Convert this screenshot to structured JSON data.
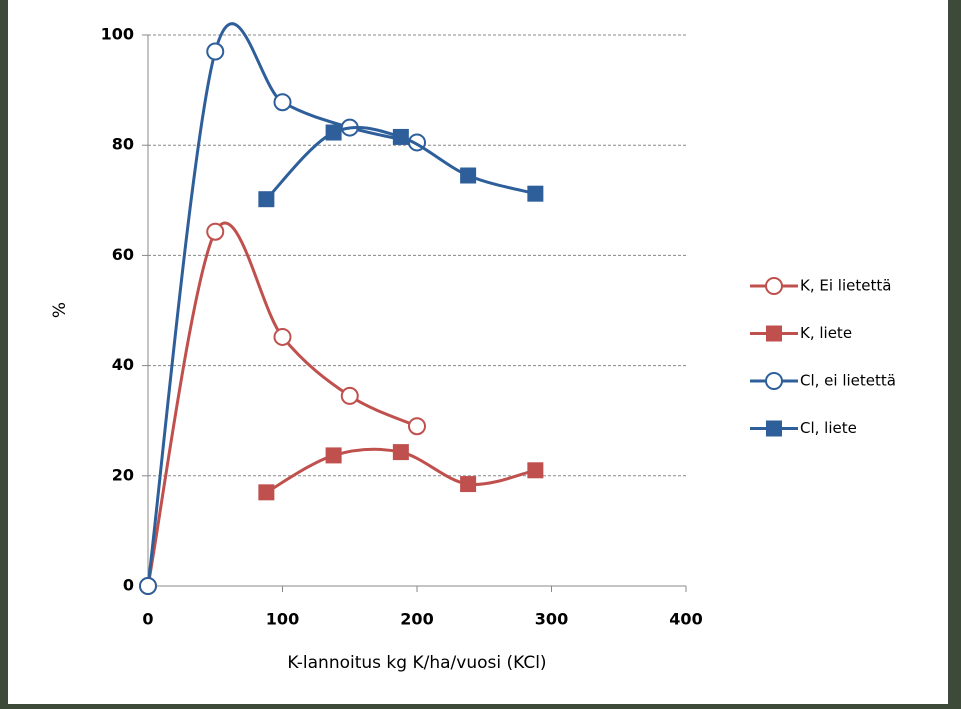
{
  "chart_data": {
    "type": "line",
    "x_label": "K-lannoitus kg K/ha/vuosi (KCl)",
    "y_label": "%",
    "xlim": [
      0,
      400
    ],
    "xticks": [
      0,
      100,
      200,
      300,
      400
    ],
    "ylim": [
      0,
      100
    ],
    "yticks": [
      0,
      20,
      40,
      60,
      80,
      100
    ],
    "grid": true,
    "smooth": true,
    "legend": "right",
    "series": [
      {
        "name": "K, Ei lietettä",
        "color": "#c0504d",
        "marker": "circle",
        "filled": false,
        "x": [
          0,
          50,
          100,
          150,
          200
        ],
        "values": [
          0,
          64.3,
          45.2,
          34.5,
          29
        ]
      },
      {
        "name": "K, liete",
        "color": "#c0504d",
        "marker": "square",
        "filled": true,
        "x": [
          88,
          138,
          188,
          238,
          288
        ],
        "values": [
          17,
          23.7,
          24.3,
          18.5,
          21
        ]
      },
      {
        "name": "Cl, ei lietettä",
        "color": "#2e5f9a",
        "marker": "circle",
        "filled": false,
        "x": [
          0,
          50,
          100,
          150,
          200
        ],
        "values": [
          0,
          97,
          87.8,
          83.2,
          80.5
        ]
      },
      {
        "name": "Cl, liete",
        "color": "#2e5f9a",
        "marker": "square",
        "filled": true,
        "x": [
          88,
          138,
          188,
          238,
          288
        ],
        "values": [
          70.2,
          82.3,
          81.5,
          74.5,
          71.2
        ]
      }
    ]
  }
}
